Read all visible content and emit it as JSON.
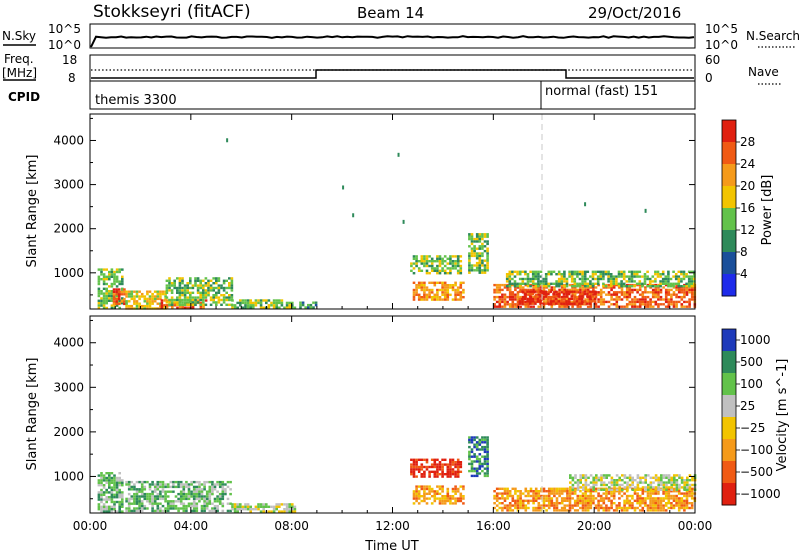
{
  "header": {
    "station": "Stokkseyri (fitACF)",
    "beam": "Beam 14",
    "date": "29/Oct/2016"
  },
  "strip_panels": {
    "nsky": {
      "label": "N.Sky",
      "tick_top": "10^5",
      "tick_bottom": "10^0"
    },
    "nsearch": {
      "label": "N.Search",
      "tick_top": "10^5",
      "tick_bottom": "10^0"
    },
    "freq": {
      "label_line1": "Freq.",
      "label_line2": "[MHz]",
      "tick_top": "18",
      "tick_bottom": "8"
    },
    "nave": {
      "label": "Nave",
      "tick_top": "60",
      "tick_bottom": "0"
    },
    "cpid": {
      "label": "CPID",
      "mode1": "themis 3300",
      "mode2": "normal (fast) 151",
      "mode2_start_hour": 18
    }
  },
  "chart_data": [
    {
      "type": "heatmap",
      "name": "power",
      "ylabel": "Slant Range [km]",
      "ylim": [
        180,
        4600
      ],
      "yticks": [
        1000,
        2000,
        3000,
        4000
      ],
      "xlim": [
        0,
        24
      ],
      "xticks": [
        0,
        4,
        8,
        12,
        16,
        20,
        24
      ],
      "colorbar": {
        "label": "Power [dB]",
        "ticks": [
          "4",
          "8",
          "12",
          "16",
          "20",
          "24",
          "28"
        ],
        "tick_values": [
          4,
          8,
          12,
          16,
          20,
          24,
          28
        ],
        "range": [
          0,
          32
        ],
        "colors": [
          "#1e2bea",
          "#1a4f9a",
          "#2e8a5a",
          "#62c24a",
          "#f2c400",
          "#f59a1a",
          "#f05a14",
          "#e02010"
        ]
      },
      "regions": [
        {
          "t": [
            0.3,
            1.3
          ],
          "r": [
            200,
            1100
          ],
          "level": 14
        },
        {
          "t": [
            0.9,
            1.4
          ],
          "r": [
            300,
            650
          ],
          "level": 24
        },
        {
          "t": [
            1.4,
            3.0
          ],
          "r": [
            200,
            600
          ],
          "level": 16
        },
        {
          "t": [
            2.8,
            4.6
          ],
          "r": [
            200,
            400
          ],
          "level": 26
        },
        {
          "t": [
            3.0,
            5.6
          ],
          "r": [
            250,
            900
          ],
          "level": 14
        },
        {
          "t": [
            5.6,
            8.1
          ],
          "r": [
            200,
            400
          ],
          "level": 14
        },
        {
          "t": [
            8.3,
            9.0
          ],
          "r": [
            200,
            350
          ],
          "level": 10
        },
        {
          "t": [
            12.7,
            14.7
          ],
          "r": [
            1000,
            1400
          ],
          "level": 12
        },
        {
          "t": [
            12.8,
            14.8
          ],
          "r": [
            400,
            800
          ],
          "level": 22
        },
        {
          "t": [
            15.0,
            15.8
          ],
          "r": [
            1000,
            1900
          ],
          "level": 12
        },
        {
          "t": [
            16.0,
            24.0
          ],
          "r": [
            250,
            750
          ],
          "level": 24
        },
        {
          "t": [
            16.5,
            24.0
          ],
          "r": [
            700,
            1050
          ],
          "level": 12
        },
        {
          "t": [
            17.0,
            20.0
          ],
          "r": [
            300,
            600
          ],
          "level": 28
        }
      ],
      "sparse": [
        [
          5.4,
          4050
        ],
        [
          10.0,
          2980
        ],
        [
          12.2,
          3720
        ],
        [
          10.4,
          2350
        ],
        [
          12.4,
          2200
        ],
        [
          19.6,
          2600
        ],
        [
          22.0,
          2450
        ]
      ]
    },
    {
      "type": "heatmap",
      "name": "velocity",
      "ylabel": "Slant Range [km]",
      "ylim": [
        180,
        4600
      ],
      "yticks": [
        1000,
        2000,
        3000,
        4000
      ],
      "xlim": [
        0,
        24
      ],
      "xticks": [
        0,
        4,
        8,
        12,
        16,
        20,
        24
      ],
      "xtick_labels": [
        "00:00",
        "04:00",
        "08:00",
        "12:00",
        "16:00",
        "20:00",
        "00:00"
      ],
      "xlabel": "Time UT",
      "colorbar": {
        "label": "Velocity [m s^-1]",
        "ticks": [
          "1000",
          "500",
          "100",
          "25",
          "−25",
          "−100",
          "−500",
          "−1000"
        ],
        "colors": [
          "#1e3aba",
          "#2e8a5a",
          "#62c24a",
          "#c0c0c0",
          "#f2c400",
          "#f59a1a",
          "#f05a14",
          "#e02010"
        ]
      },
      "regions": [
        {
          "t": [
            0.3,
            1.3
          ],
          "r": [
            200,
            1100
          ],
          "class": 2
        },
        {
          "t": [
            1.4,
            5.6
          ],
          "r": [
            200,
            900
          ],
          "class": 2
        },
        {
          "t": [
            5.6,
            8.1
          ],
          "r": [
            200,
            400
          ],
          "class": 3
        },
        {
          "t": [
            12.7,
            14.7
          ],
          "r": [
            1000,
            1400
          ],
          "class": 7
        },
        {
          "t": [
            12.8,
            14.8
          ],
          "r": [
            400,
            800
          ],
          "class": 5
        },
        {
          "t": [
            15.0,
            15.8
          ],
          "r": [
            1000,
            1900
          ],
          "class": 1
        },
        {
          "t": [
            16.0,
            24.0
          ],
          "r": [
            250,
            750
          ],
          "class": 5
        },
        {
          "t": [
            19.0,
            24.0
          ],
          "r": [
            700,
            1050
          ],
          "class": 3
        }
      ]
    }
  ]
}
